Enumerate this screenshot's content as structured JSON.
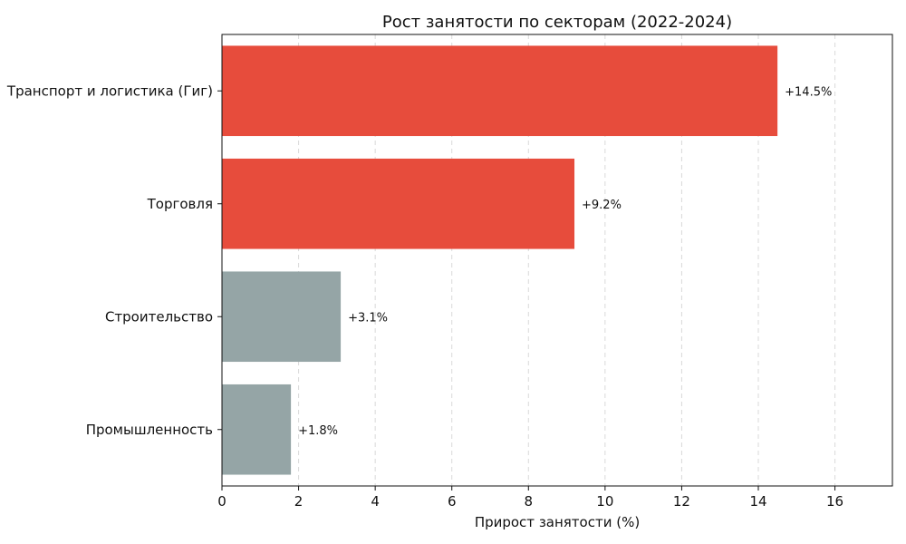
{
  "chart_data": {
    "type": "bar",
    "orientation": "horizontal",
    "title": "Рост занятости по секторам (2022-2024)",
    "xlabel": "Прирост занятости (%)",
    "ylabel": "",
    "categories": [
      "Транспорт и логистика (Гиг)",
      "Торговля",
      "Строительство",
      "Промышленность"
    ],
    "values": [
      14.5,
      9.2,
      3.1,
      1.8
    ],
    "value_labels": [
      "+14.5%",
      "+9.2%",
      "+3.1%",
      "+1.8%"
    ],
    "bar_colors": [
      "#e74c3c",
      "#e74c3c",
      "#95a5a6",
      "#95a5a6"
    ],
    "xlim": [
      0,
      17.5
    ],
    "xticks": [
      0,
      2,
      4,
      6,
      8,
      10,
      12,
      14,
      16
    ],
    "grid": "x-dashed",
    "legend": "none"
  }
}
